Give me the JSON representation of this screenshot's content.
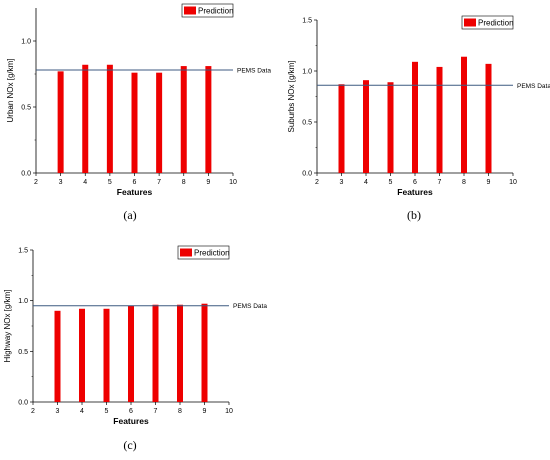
{
  "chart_data": [
    {
      "type": "bar",
      "panel_label": "(a)",
      "xlabel": "Features",
      "ylabel": "Urban NOx [g/km]",
      "xlim": [
        2,
        10
      ],
      "ylim": [
        0,
        1.25
      ],
      "xticks": [
        "2",
        "3",
        "4",
        "5",
        "6",
        "7",
        "8",
        "9",
        "10"
      ],
      "yticks": [
        "0.0",
        "0.5",
        "1.0"
      ],
      "legend": {
        "label": "Prediction",
        "position": "top-right"
      },
      "reference": {
        "label": "PEMS Data",
        "value": 0.78
      },
      "series": [
        {
          "name": "Prediction",
          "color": "#ee0000",
          "x": [
            3,
            4,
            5,
            6,
            7,
            8,
            9
          ],
          "values": [
            0.77,
            0.82,
            0.82,
            0.76,
            0.76,
            0.81,
            0.81
          ]
        }
      ]
    },
    {
      "type": "bar",
      "panel_label": "(b)",
      "xlabel": "Features",
      "ylabel": "Suburbs NOx [g/km]",
      "xlim": [
        2,
        10
      ],
      "ylim": [
        0,
        1.5
      ],
      "xticks": [
        "2",
        "3",
        "4",
        "5",
        "6",
        "7",
        "8",
        "9",
        "10"
      ],
      "yticks": [
        "0.0",
        "0.5",
        "1.0",
        "1.5"
      ],
      "legend": {
        "label": "Prediction",
        "position": "top-right"
      },
      "reference": {
        "label": "PEMS Data",
        "value": 0.86
      },
      "series": [
        {
          "name": "Prediction",
          "color": "#ee0000",
          "x": [
            3,
            4,
            5,
            6,
            7,
            8,
            9
          ],
          "values": [
            0.87,
            0.91,
            0.89,
            1.09,
            1.04,
            1.14,
            1.07
          ]
        }
      ]
    },
    {
      "type": "bar",
      "panel_label": "(c)",
      "xlabel": "Features",
      "ylabel": "Highway NOx [g/km]",
      "xlim": [
        2,
        10
      ],
      "ylim": [
        0,
        1.5
      ],
      "xticks": [
        "2",
        "3",
        "4",
        "5",
        "6",
        "7",
        "8",
        "9",
        "10"
      ],
      "yticks": [
        "0.0",
        "0.5",
        "1.0",
        "1.5"
      ],
      "legend": {
        "label": "Prediction",
        "position": "top-right"
      },
      "reference": {
        "label": "PEMS Data",
        "value": 0.95
      },
      "series": [
        {
          "name": "Prediction",
          "color": "#ee0000",
          "x": [
            3,
            4,
            5,
            6,
            7,
            8,
            9
          ],
          "values": [
            0.9,
            0.92,
            0.92,
            0.95,
            0.96,
            0.96,
            0.97
          ]
        }
      ]
    }
  ],
  "colors": {
    "bar": "#ee0000",
    "reference_line": "#3d5a80",
    "axis": "#000000"
  }
}
